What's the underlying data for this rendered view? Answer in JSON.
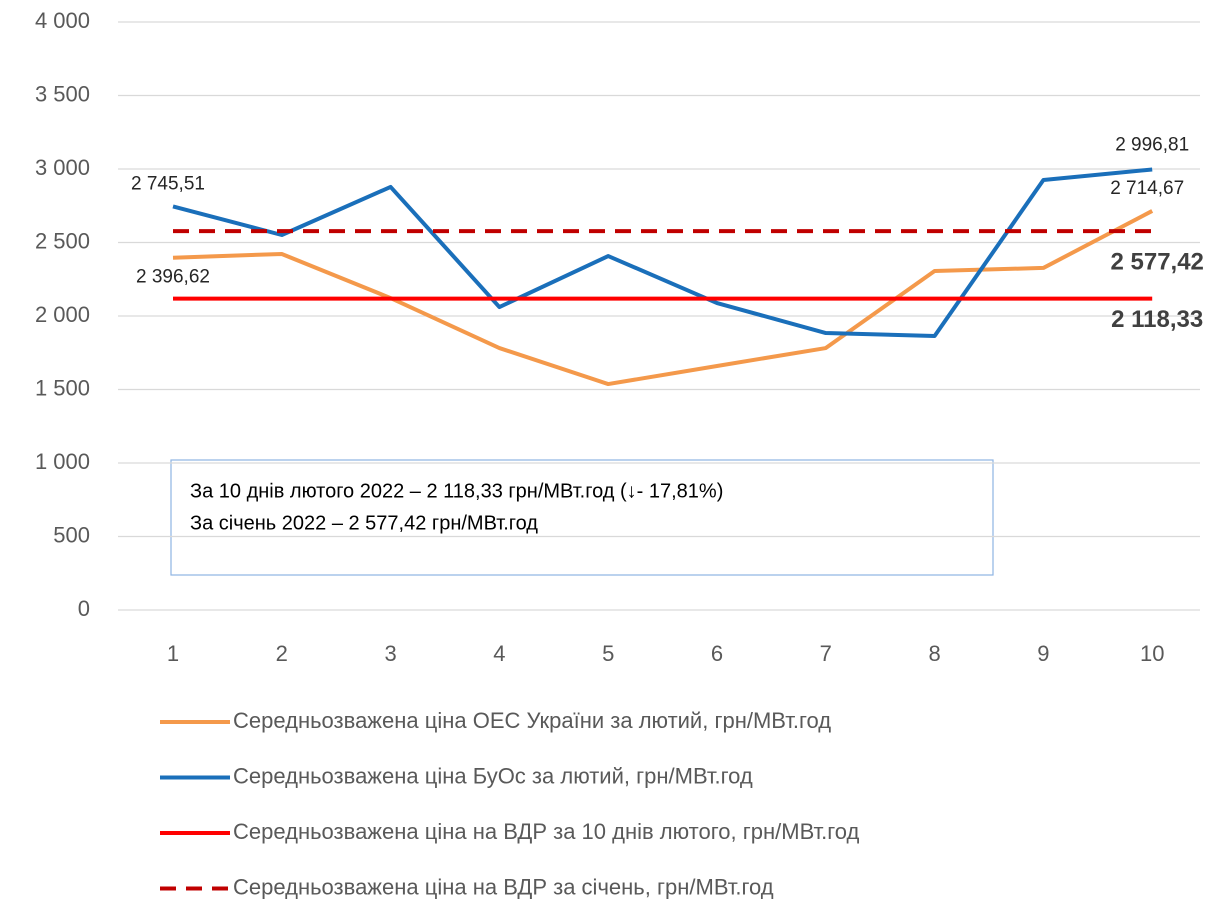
{
  "chart_data": {
    "type": "line",
    "categories": [
      "1",
      "2",
      "3",
      "4",
      "5",
      "6",
      "7",
      "8",
      "9",
      "10"
    ],
    "series": [
      {
        "name": "Середньозважена ціна ОЕС України за лютий, грн/МВт.год",
        "color": "#f4994b",
        "values": [
          2396.62,
          2422,
          2122,
          1782,
          1537,
          1660,
          1782,
          2306,
          2327,
          2714.67
        ],
        "value_labels": [
          "2 396,62",
          null,
          null,
          null,
          null,
          null,
          null,
          null,
          null,
          "2 714,67"
        ]
      },
      {
        "name": "Середньозважена ціна БуОс за лютий, грн/МВт.год",
        "color": "#1a6fba",
        "values": [
          2745.51,
          2551,
          2878,
          2061,
          2408,
          2088,
          1884,
          1864,
          2925,
          2996.81
        ],
        "value_labels": [
          "2 745,51",
          null,
          null,
          null,
          null,
          null,
          null,
          null,
          null,
          "2 996,81"
        ]
      },
      {
        "name": "Середньозважена ціна на ВДР за 10 днів лютого, грн/МВт.год",
        "color": "#ff0000",
        "values": [
          2118.33,
          2118.33,
          2118.33,
          2118.33,
          2118.33,
          2118.33,
          2118.33,
          2118.33,
          2118.33,
          2118.33
        ],
        "value_labels": [
          null,
          null,
          null,
          null,
          null,
          null,
          null,
          null,
          null,
          "2 118,33"
        ]
      },
      {
        "name": "Середньозважена ціна на ВДР за січень, грн/МВт.год",
        "color": "#c00000",
        "dashed": true,
        "values": [
          2577.42,
          2577.42,
          2577.42,
          2577.42,
          2577.42,
          2577.42,
          2577.42,
          2577.42,
          2577.42,
          2577.42
        ],
        "value_labels": [
          null,
          null,
          null,
          null,
          null,
          null,
          null,
          null,
          null,
          "2 577,42"
        ]
      }
    ],
    "ylim": [
      0,
      4000
    ],
    "yticks": [
      0,
      500,
      {
        "value": 1000,
        "label": "1 000"
      },
      {
        "value": 1500,
        "label": "1 500"
      },
      {
        "value": 2000,
        "label": "2 000"
      },
      {
        "value": 2500,
        "label": "2 500"
      },
      {
        "value": 3000,
        "label": "3 000"
      },
      {
        "value": 3500,
        "label": "3 500"
      },
      {
        "value": 4000,
        "label": "4 000"
      }
    ],
    "grid": true,
    "annotation": [
      "За 10 днів лютого 2022 – 2 118,33 грн/МВт.год (↓- 17,81%)",
      "За січень 2022 – 2 577,42 грн/МВт.год"
    ]
  }
}
